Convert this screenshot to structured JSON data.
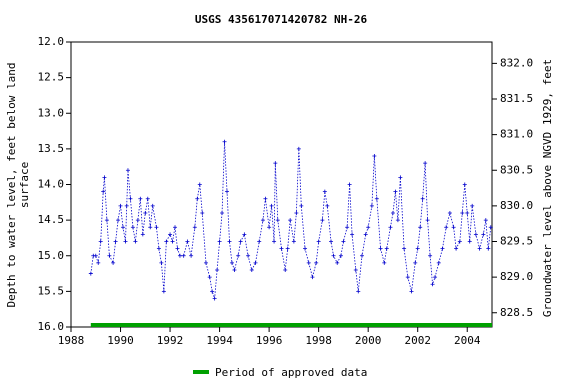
{
  "chart_data": {
    "type": "line",
    "title": "USGS 435617071420782 NH-26",
    "y_label": [
      "Depth to water level, feet below land",
      "surface"
    ],
    "y2_label": "Groundwater level above NGVD 1929, feet",
    "xlim": [
      1988,
      2005
    ],
    "xticks": [
      1988,
      1990,
      1992,
      1994,
      1996,
      1998,
      2000,
      2002,
      2004
    ],
    "ylim": [
      12,
      16
    ],
    "y_inverted": true,
    "yticks": [
      {
        "value": 12,
        "label": "12.0"
      },
      12.5,
      {
        "value": 13,
        "label": "13.0"
      },
      13.5,
      {
        "value": 14,
        "label": "14.0"
      },
      14.5,
      {
        "value": 15,
        "label": "15.0"
      },
      15.5,
      {
        "value": 16,
        "label": "16.0"
      }
    ],
    "y2lim": [
      828.3,
      832.3
    ],
    "y2ticks": [
      828.5,
      {
        "value": 829,
        "label": "829.0"
      },
      829.5,
      {
        "value": 830,
        "label": "830.0"
      },
      830.5,
      {
        "value": 831,
        "label": "831.0"
      },
      831.5,
      {
        "value": 832,
        "label": "832.0"
      }
    ],
    "series": [
      {
        "color": "#0000cc",
        "x": [
          1988.8,
          1988.9,
          1989.0,
          1989.1,
          1989.2,
          1989.3,
          1989.35,
          1989.45,
          1989.55,
          1989.7,
          1989.8,
          1989.9,
          1990.0,
          1990.1,
          1990.2,
          1990.25,
          1990.3,
          1990.4,
          1990.5,
          1990.6,
          1990.7,
          1990.8,
          1990.9,
          1991.0,
          1991.1,
          1991.2,
          1991.3,
          1991.45,
          1991.55,
          1991.65,
          1991.75,
          1991.85,
          1992.0,
          1992.1,
          1992.2,
          1992.3,
          1992.4,
          1992.55,
          1992.7,
          1992.85,
          1993.0,
          1993.1,
          1993.2,
          1993.3,
          1993.45,
          1993.6,
          1993.7,
          1993.8,
          1993.9,
          1994.0,
          1994.1,
          1994.2,
          1994.3,
          1994.4,
          1994.5,
          1994.6,
          1994.75,
          1994.85,
          1995.0,
          1995.15,
          1995.3,
          1995.45,
          1995.6,
          1995.75,
          1995.85,
          1996.0,
          1996.1,
          1996.2,
          1996.25,
          1996.35,
          1996.5,
          1996.65,
          1996.75,
          1996.85,
          1997.0,
          1997.1,
          1997.2,
          1997.3,
          1997.45,
          1997.6,
          1997.75,
          1997.9,
          1998.0,
          1998.15,
          1998.25,
          1998.35,
          1998.5,
          1998.6,
          1998.75,
          1998.9,
          1999.0,
          1999.15,
          1999.25,
          1999.35,
          1999.5,
          1999.6,
          1999.75,
          1999.9,
          2000.0,
          2000.15,
          2000.25,
          2000.35,
          2000.5,
          2000.65,
          2000.75,
          2000.9,
          2001.0,
          2001.1,
          2001.2,
          2001.3,
          2001.45,
          2001.6,
          2001.75,
          2001.9,
          2002.0,
          2002.1,
          2002.2,
          2002.3,
          2002.4,
          2002.5,
          2002.6,
          2002.7,
          2002.85,
          2003.0,
          2003.15,
          2003.3,
          2003.45,
          2003.55,
          2003.7,
          2003.8,
          2003.9,
          2004.0,
          2004.1,
          2004.2,
          2004.35,
          2004.5,
          2004.65,
          2004.75,
          2004.85,
          2004.95
        ],
        "values": [
          15.25,
          15.0,
          15.0,
          15.1,
          14.8,
          14.1,
          13.9,
          14.5,
          15.0,
          15.1,
          14.8,
          14.5,
          14.3,
          14.6,
          14.8,
          14.3,
          13.8,
          14.2,
          14.6,
          14.8,
          14.5,
          14.2,
          14.7,
          14.4,
          14.2,
          14.6,
          14.3,
          14.6,
          14.9,
          15.1,
          15.5,
          14.8,
          14.7,
          14.8,
          14.6,
          14.9,
          15.0,
          15.0,
          14.8,
          15.0,
          14.6,
          14.2,
          14.0,
          14.4,
          15.1,
          15.3,
          15.5,
          15.6,
          15.2,
          14.8,
          14.4,
          13.4,
          14.1,
          14.8,
          15.1,
          15.2,
          15.0,
          14.8,
          14.7,
          15.0,
          15.2,
          15.1,
          14.8,
          14.5,
          14.2,
          14.6,
          14.3,
          14.8,
          13.7,
          14.5,
          14.9,
          15.2,
          14.9,
          14.5,
          14.8,
          14.4,
          13.5,
          14.3,
          14.9,
          15.1,
          15.3,
          15.1,
          14.8,
          14.5,
          14.1,
          14.3,
          14.8,
          15.0,
          15.1,
          15.0,
          14.8,
          14.6,
          14.0,
          14.7,
          15.2,
          15.5,
          15.0,
          14.7,
          14.6,
          14.3,
          13.6,
          14.2,
          14.9,
          15.1,
          14.9,
          14.6,
          14.4,
          14.1,
          14.5,
          13.9,
          14.9,
          15.3,
          15.5,
          15.1,
          14.9,
          14.6,
          14.2,
          13.7,
          14.5,
          15.0,
          15.4,
          15.3,
          15.1,
          14.9,
          14.6,
          14.4,
          14.6,
          14.9,
          14.8,
          14.4,
          14.0,
          14.4,
          14.8,
          14.3,
          14.7,
          14.9,
          14.7,
          14.5,
          14.9,
          14.6
        ]
      }
    ],
    "period": {
      "name": "Period of approved data",
      "color": "#00a000",
      "start": 1988.8,
      "end": 2005
    }
  }
}
